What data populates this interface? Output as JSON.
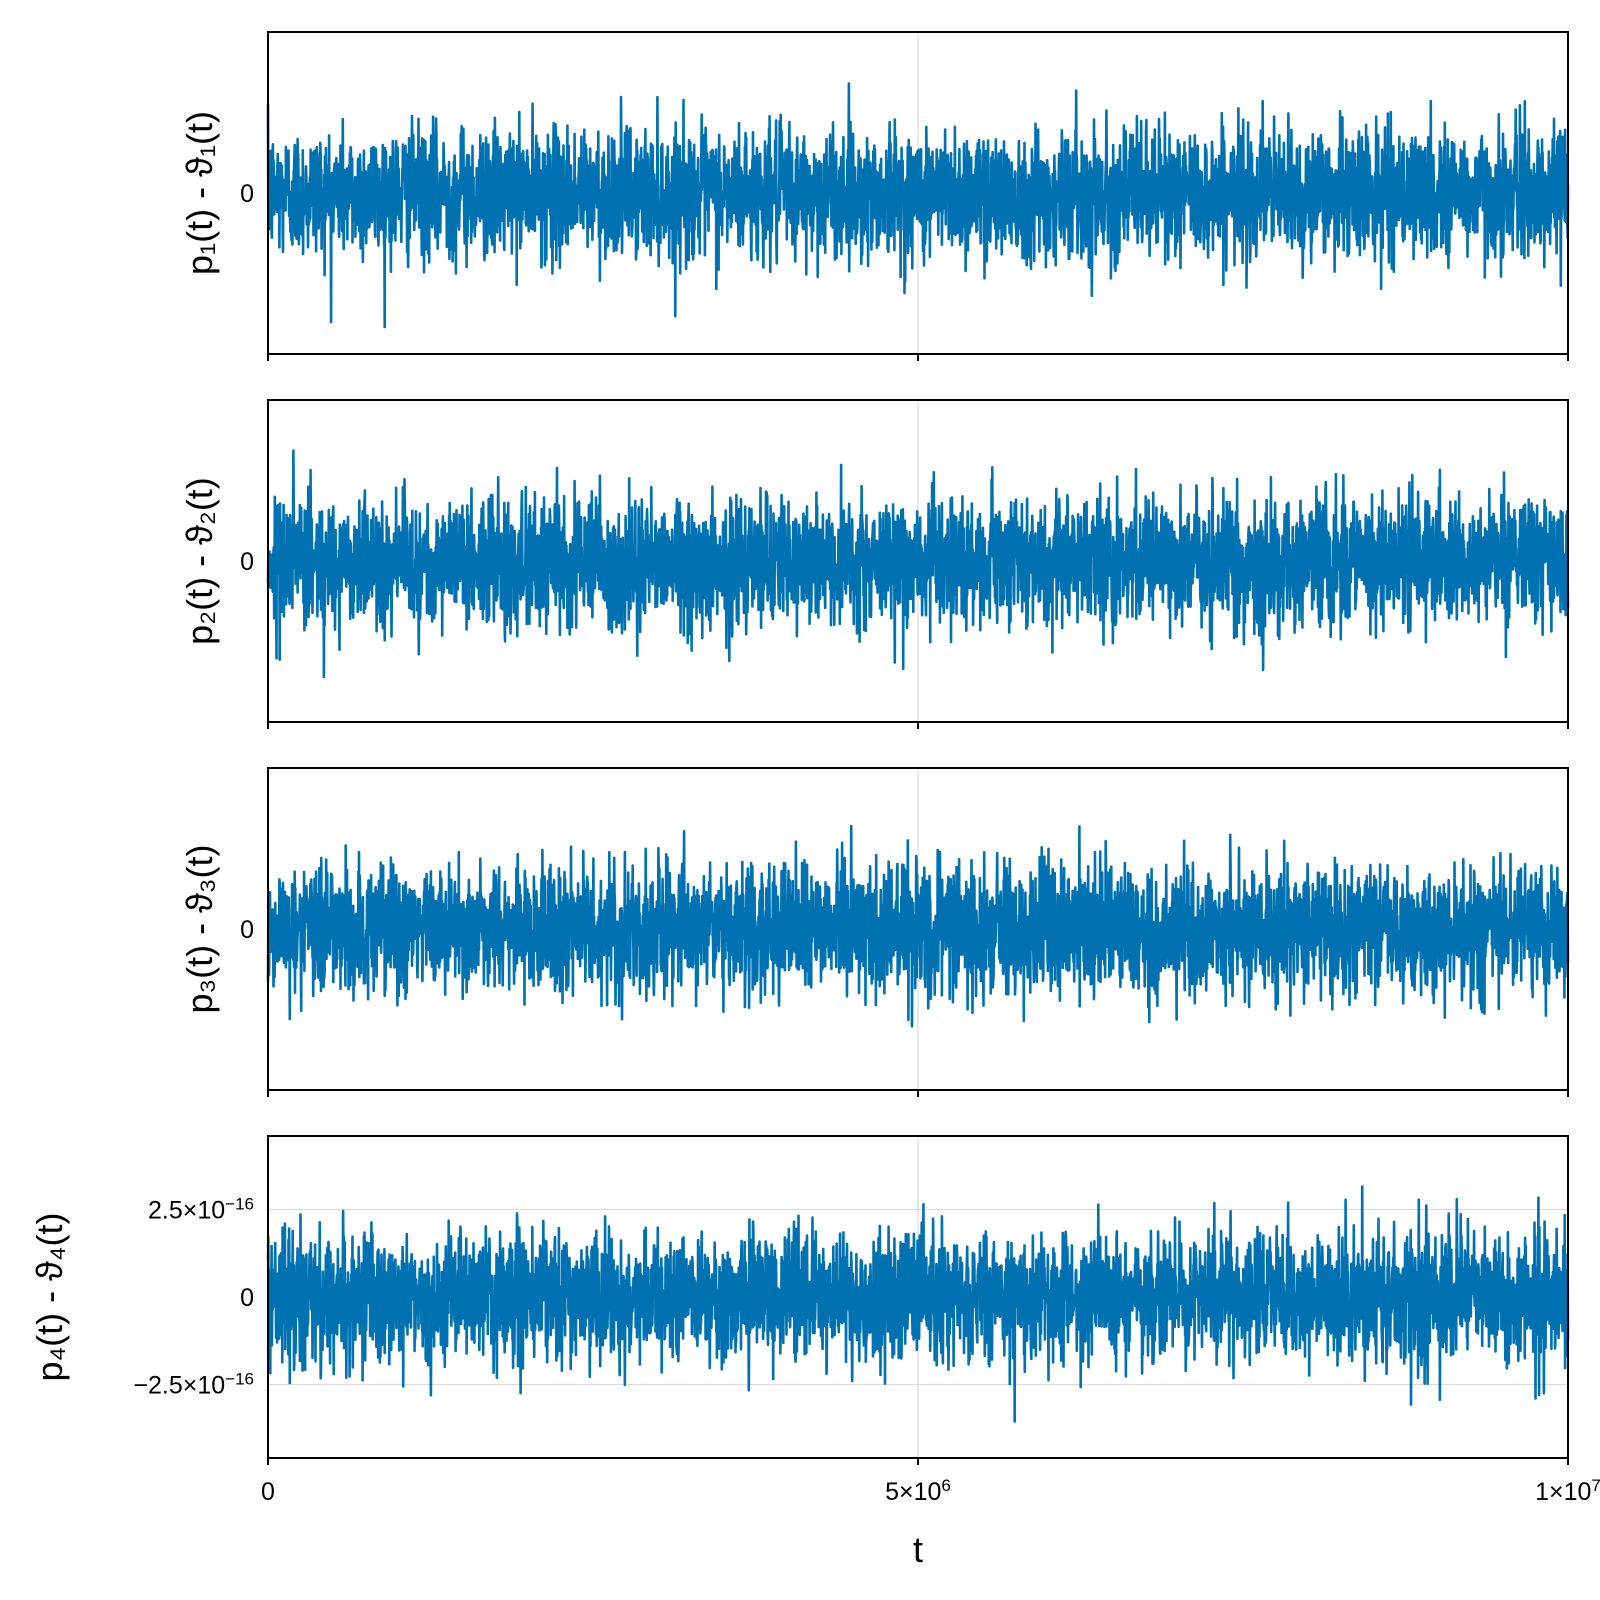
{
  "chart_data": [
    {
      "type": "line",
      "ylabel": "p₁(t) - ϑ₁(t)",
      "xlim": [
        0,
        10000000
      ],
      "y_ticks": [
        {
          "value": 0,
          "label": "0"
        }
      ],
      "x_ticks": [
        0,
        5000000,
        10000000
      ],
      "x_tick_labels_shown": false,
      "color": "#0072b2",
      "summary": {
        "y_min": -6e-16,
        "y_max": 6e-16,
        "n_points": 4000
      },
      "style": "dense noise centered at 0",
      "grid": true
    },
    {
      "type": "line",
      "ylabel": "p₂(t) - ϑ₂(t)",
      "xlim": [
        0,
        10000000
      ],
      "y_ticks": [
        {
          "value": 0,
          "label": "0"
        }
      ],
      "x_ticks": [
        0,
        5000000,
        10000000
      ],
      "x_tick_labels_shown": false,
      "color": "#0072b2",
      "summary": {
        "y_min": -6e-16,
        "y_max": 6e-16,
        "n_points": 4000
      },
      "style": "dense noise centered at 0",
      "grid": true
    },
    {
      "type": "line",
      "ylabel": "p₃(t) - ϑ₃(t)",
      "xlim": [
        0,
        10000000
      ],
      "y_ticks": [
        {
          "value": 0,
          "label": "0"
        }
      ],
      "x_ticks": [
        0,
        5000000,
        10000000
      ],
      "x_tick_labels_shown": false,
      "color": "#0072b2",
      "summary": {
        "y_min": -6e-16,
        "y_max": 6e-16,
        "n_points": 4000
      },
      "style": "dense noise centered at 0",
      "grid": true
    },
    {
      "type": "line",
      "ylabel": "p₄(t) - ϑ₄(t)",
      "xlabel": "t",
      "xlim": [
        0,
        10000000
      ],
      "ylim": [
        -4.6e-16,
        4.6e-16
      ],
      "y_ticks": [
        {
          "value": 2.5e-16,
          "label": "2.5×10",
          "exp": "−16"
        },
        {
          "value": 0,
          "label": "0"
        },
        {
          "value": -2.5e-16,
          "label": "−2.5×10",
          "exp": "−16"
        }
      ],
      "x_ticks": [
        {
          "value": 0,
          "label": "0"
        },
        {
          "value": 5000000,
          "label": "5×10",
          "exp": "6"
        },
        {
          "value": 10000000,
          "label": "1×10",
          "exp": "7"
        }
      ],
      "color": "#0072b2",
      "summary": {
        "y_min": -4.2e-16,
        "y_max": 4e-16,
        "n_points": 4000
      },
      "style": "dense noise centered at 0",
      "grid": true
    }
  ]
}
